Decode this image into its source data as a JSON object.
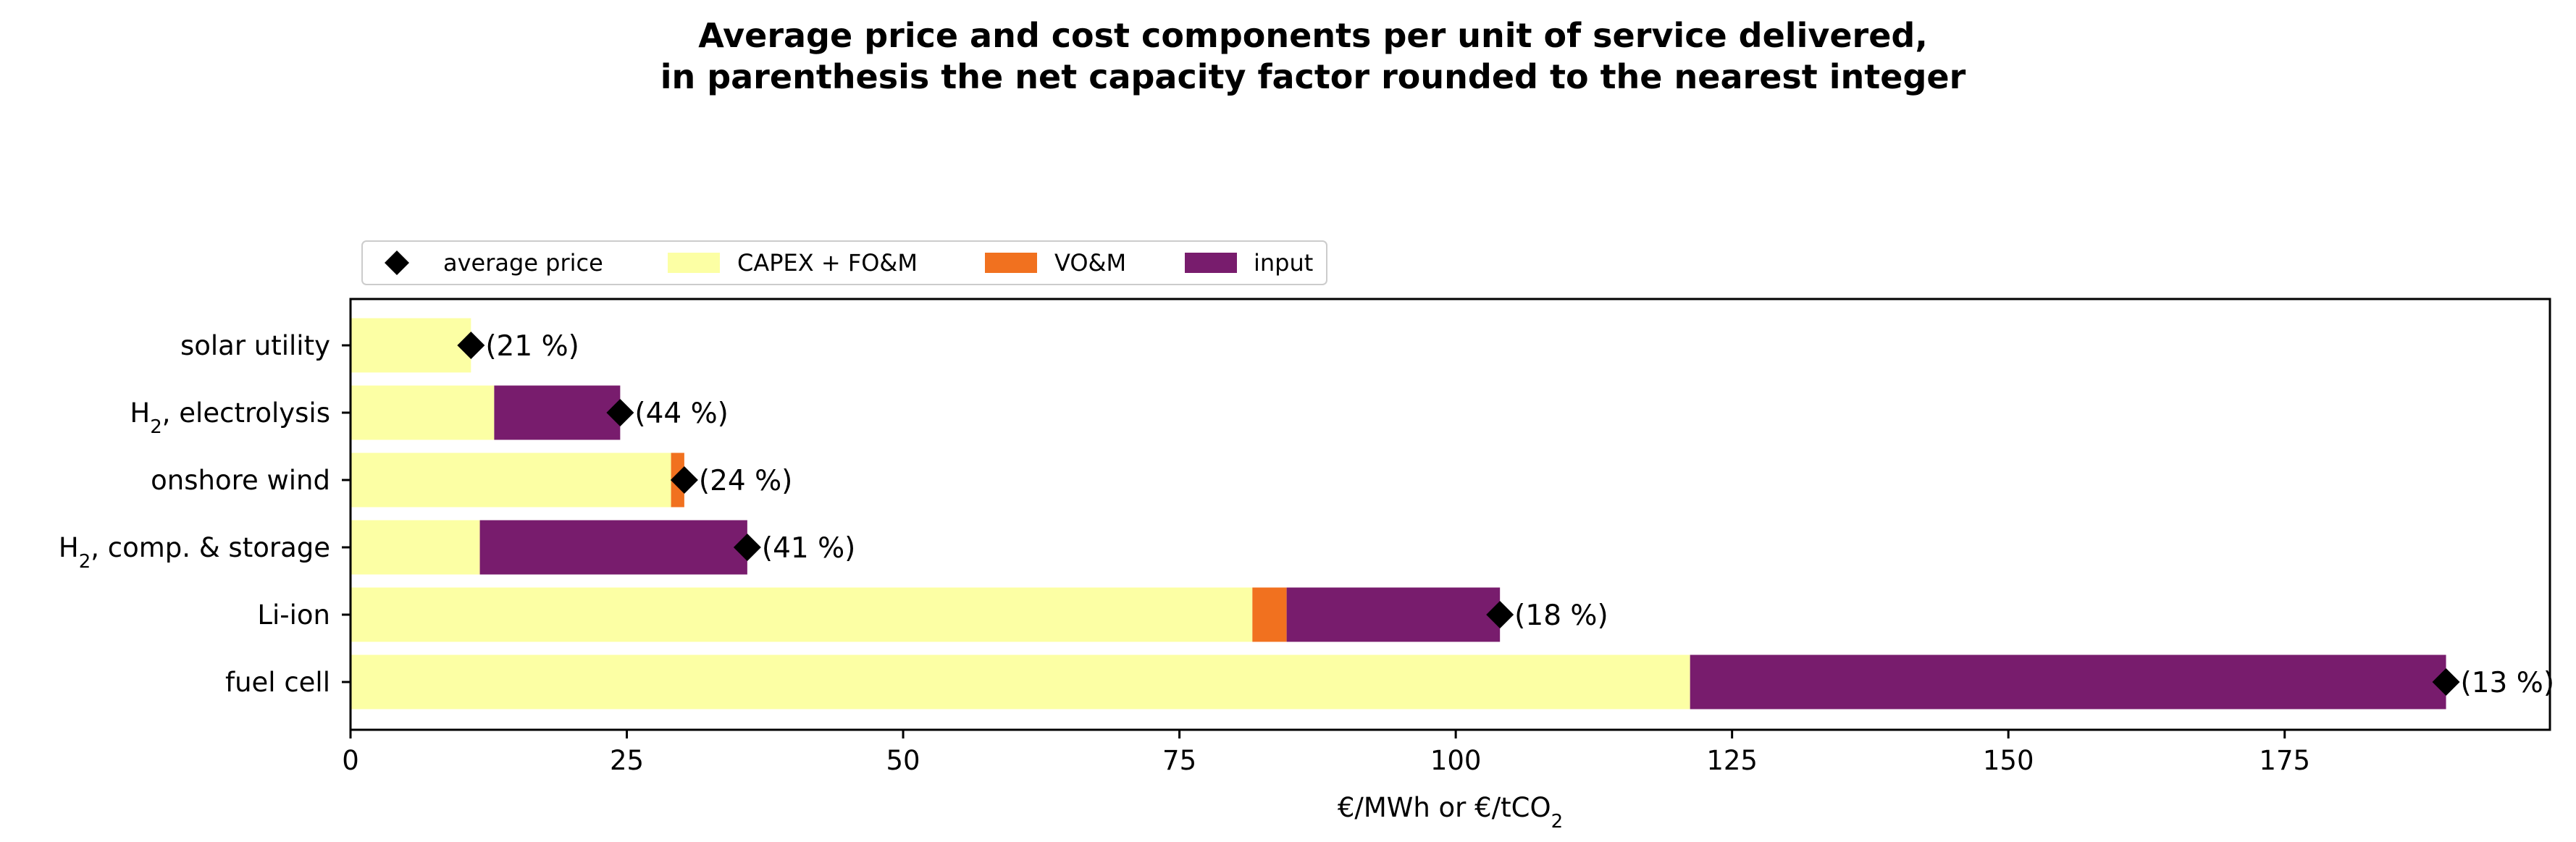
{
  "chart_data": {
    "type": "bar",
    "orientation": "horizontal",
    "stacked": true,
    "title_line1": "Average price and cost components per unit of service delivered,",
    "title_line2": "in parenthesis the net capacity factor rounded to the nearest integer",
    "xlabel_main": "€/MWh or €/tCO",
    "xlabel_sub": "2",
    "ylabel": "",
    "xlim": [
      0,
      199
    ],
    "x_ticks": [
      0,
      25,
      50,
      75,
      100,
      125,
      150,
      175
    ],
    "grid": false,
    "legend_position": "top-left",
    "categories": [
      {
        "main": "solar utility",
        "sub": "",
        "rest": ""
      },
      {
        "main": "H",
        "sub": "2",
        "rest": ", electrolysis"
      },
      {
        "main": "onshore wind",
        "sub": "",
        "rest": ""
      },
      {
        "main": "H",
        "sub": "2",
        "rest": ", comp. & storage"
      },
      {
        "main": "Li-ion",
        "sub": "",
        "rest": ""
      },
      {
        "main": "fuel cell",
        "sub": "",
        "rest": ""
      }
    ],
    "series": [
      {
        "name": "CAPEX + FO&M",
        "color": "#fcffa4",
        "values": [
          10.9,
          13.0,
          29.0,
          11.7,
          81.6,
          121.2
        ]
      },
      {
        "name": "VO&M",
        "color": "#f1711f",
        "values": [
          0,
          0,
          1.2,
          0,
          3.1,
          0
        ]
      },
      {
        "name": "input",
        "color": "#781c6d",
        "values": [
          0,
          11.4,
          0,
          24.2,
          19.3,
          68.4
        ]
      }
    ],
    "average_price": {
      "name": "average price",
      "color": "#000000",
      "values": [
        10.9,
        24.4,
        30.2,
        35.9,
        104.0,
        189.6
      ]
    },
    "capacity_factor_labels": [
      "(21 %)",
      "(44 %)",
      "(24 %)",
      "(41 %)",
      "(18 %)",
      "(13 %)"
    ]
  }
}
